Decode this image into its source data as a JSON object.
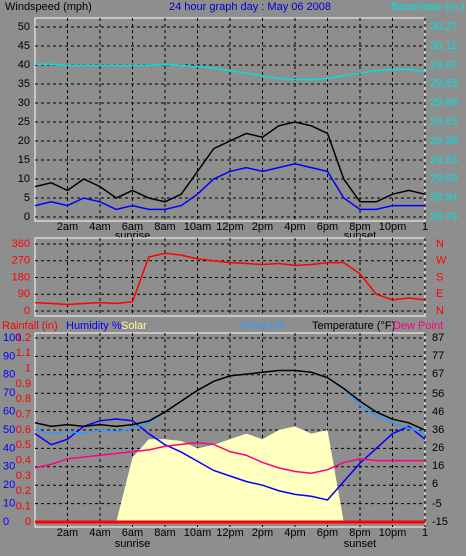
{
  "chart_data": [
    {
      "type": "line",
      "title": "24 hour graph day : May 06 2008",
      "y_label": "Windspeed (mph)",
      "y2_label": "Barometer (in.)",
      "x": [
        0,
        1,
        2,
        3,
        4,
        5,
        6,
        7,
        8,
        9,
        10,
        11,
        12,
        13,
        14,
        15,
        16,
        17,
        18,
        19,
        20,
        21,
        22,
        23,
        24
      ],
      "xlim": [
        0,
        24
      ],
      "xticks": [
        {
          "value": 2,
          "label": "2am"
        },
        {
          "value": 4,
          "label": "4am"
        },
        {
          "value": 6,
          "label": "6am"
        },
        {
          "value": 8,
          "label": "8am"
        },
        {
          "value": 10,
          "label": "10am"
        },
        {
          "value": 12,
          "label": "12pm"
        },
        {
          "value": 14,
          "label": "2pm"
        },
        {
          "value": 16,
          "label": "4pm"
        },
        {
          "value": 18,
          "label": "6pm"
        },
        {
          "value": 20,
          "label": "8pm"
        },
        {
          "value": 22,
          "label": "10pm"
        },
        {
          "value": 24,
          "label": "1"
        }
      ],
      "ylim": [
        0,
        50
      ],
      "yticks": [
        0,
        5,
        10,
        15,
        20,
        25,
        30,
        35,
        40,
        45,
        50
      ],
      "y2lim": [
        28.79,
        30.27
      ],
      "y2ticks": [
        28.79,
        28.94,
        29.09,
        29.23,
        29.38,
        29.53,
        29.68,
        29.83,
        29.97,
        30.12,
        30.27
      ],
      "grid": true,
      "annotations": [
        {
          "text": "sunrise",
          "x": 6
        },
        {
          "text": "sunset",
          "x": 20
        }
      ],
      "series": [
        {
          "color": "#000000",
          "values": [
            8,
            9,
            7,
            10,
            8,
            5,
            7,
            5,
            4,
            6,
            12,
            18,
            20,
            22,
            21,
            24,
            25,
            24,
            22,
            10,
            4,
            4,
            6,
            7,
            6
          ]
        },
        {
          "color": "#0000ff",
          "values": [
            3,
            4,
            3,
            5,
            4,
            2,
            3,
            2,
            2,
            3,
            6,
            10,
            12,
            13,
            12,
            13,
            14,
            13,
            12,
            5,
            2,
            2,
            3,
            3,
            3
          ]
        },
        {
          "color": "#00e0e0",
          "axis": "y2",
          "values": [
            29.98,
            29.98,
            29.97,
            29.97,
            29.97,
            29.97,
            29.97,
            29.97,
            29.98,
            29.97,
            29.96,
            29.95,
            29.93,
            29.91,
            29.89,
            29.87,
            29.86,
            29.86,
            29.87,
            29.89,
            29.91,
            29.93,
            29.94,
            29.94,
            29.92
          ]
        }
      ]
    },
    {
      "type": "line",
      "x": [
        0,
        1,
        2,
        3,
        4,
        5,
        6,
        7,
        8,
        9,
        10,
        11,
        12,
        13,
        14,
        15,
        16,
        17,
        18,
        19,
        20,
        21,
        22,
        23,
        24
      ],
      "xlim": [
        0,
        24
      ],
      "xticks": [
        2,
        4,
        6,
        8,
        10,
        12,
        14,
        16,
        18,
        20,
        22,
        24
      ],
      "ylim": [
        0,
        360
      ],
      "yticks": [
        0,
        90,
        180,
        270,
        360
      ],
      "y2lim": [
        0,
        360
      ],
      "y2ticks": [
        {
          "value": 0,
          "label": "N"
        },
        {
          "value": 90,
          "label": "E"
        },
        {
          "value": 180,
          "label": "S"
        },
        {
          "value": 270,
          "label": "W"
        },
        {
          "value": 360,
          "label": "N"
        }
      ],
      "grid": true,
      "series": [
        {
          "color": "#ff0000",
          "values": [
            45,
            40,
            35,
            40,
            45,
            40,
            50,
            290,
            310,
            300,
            280,
            270,
            260,
            255,
            250,
            255,
            245,
            250,
            260,
            260,
            200,
            90,
            60,
            70,
            60
          ]
        }
      ]
    },
    {
      "type": "line",
      "x": [
        0,
        1,
        2,
        3,
        4,
        5,
        6,
        7,
        8,
        9,
        10,
        11,
        12,
        13,
        14,
        15,
        16,
        17,
        18,
        19,
        20,
        21,
        22,
        23,
        24
      ],
      "xlim": [
        0,
        24
      ],
      "xticks": [
        {
          "value": 2,
          "label": "2am"
        },
        {
          "value": 4,
          "label": "4am"
        },
        {
          "value": 6,
          "label": "6am"
        },
        {
          "value": 8,
          "label": "8am"
        },
        {
          "value": 10,
          "label": "10am"
        },
        {
          "value": 12,
          "label": "12pm"
        },
        {
          "value": 14,
          "label": "2pm"
        },
        {
          "value": 16,
          "label": "4pm"
        },
        {
          "value": 18,
          "label": "6pm"
        },
        {
          "value": 20,
          "label": "8pm"
        },
        {
          "value": 22,
          "label": "10pm"
        },
        {
          "value": 24,
          "label": "1"
        }
      ],
      "ylim": [
        0,
        100
      ],
      "yticks": [
        0,
        10,
        20,
        30,
        40,
        50,
        60,
        70,
        80,
        90,
        100
      ],
      "y2lim": [
        0,
        1.2
      ],
      "y2ticks": [
        0,
        0.1,
        0.2,
        0.3,
        0.4,
        0.5,
        0.6,
        0.7,
        0.8,
        0.9,
        1,
        1.1,
        1.2
      ],
      "y3lim": [
        -15,
        87
      ],
      "y3ticks": [
        -15,
        -5,
        6,
        16,
        26,
        36,
        46,
        56,
        67,
        77,
        87
      ],
      "grid": true,
      "annotations": [
        {
          "text": "sunrise",
          "x": 6
        },
        {
          "text": "sunset",
          "x": 20
        }
      ],
      "series": [
        {
          "name": "Solar",
          "color": "#ffffc0",
          "style": "area",
          "axis": "y",
          "values": [
            0,
            0,
            0,
            0,
            0,
            0,
            35,
            45,
            45,
            44,
            40,
            42,
            45,
            48,
            45,
            50,
            52,
            48,
            50,
            0,
            0,
            0,
            0,
            0,
            0
          ]
        },
        {
          "name": "Rainfall (in)",
          "color": "#ff0000",
          "axis": "y2",
          "values": [
            0,
            0,
            0,
            0,
            0,
            0,
            0,
            0,
            0,
            0,
            0,
            0,
            0,
            0,
            0,
            0,
            0,
            0,
            0,
            0,
            0,
            0,
            0,
            0,
            0
          ]
        },
        {
          "name": "Humidity %",
          "color": "#0000ff",
          "axis": "y",
          "values": [
            48,
            42,
            45,
            52,
            55,
            56,
            55,
            48,
            42,
            38,
            33,
            28,
            25,
            22,
            20,
            17,
            15,
            14,
            12,
            22,
            32,
            40,
            48,
            52,
            45
          ]
        },
        {
          "name": "Windchill",
          "color": "#3399ff",
          "axis": "y3",
          "values": [
            36,
            34,
            35,
            34,
            36,
            35,
            37,
            40,
            46,
            52,
            58,
            63,
            66,
            67,
            68,
            69,
            69,
            68,
            65,
            59,
            50,
            44,
            40,
            37,
            34
          ]
        },
        {
          "name": "Temperature (°F)",
          "color": "#000000",
          "axis": "y3",
          "values": [
            40,
            38,
            39,
            38,
            39,
            38,
            39,
            41,
            46,
            52,
            58,
            63,
            66,
            67,
            68,
            69,
            69,
            68,
            65,
            59,
            52,
            46,
            42,
            40,
            36
          ]
        },
        {
          "name": "Dew Point",
          "color": "#ff0080",
          "axis": "y3",
          "values": [
            15,
            17,
            20,
            21,
            22,
            23,
            24,
            25,
            27,
            28,
            29,
            28,
            24,
            22,
            18,
            15,
            13,
            12,
            14,
            18,
            20,
            19,
            19,
            19,
            19
          ]
        }
      ]
    }
  ]
}
